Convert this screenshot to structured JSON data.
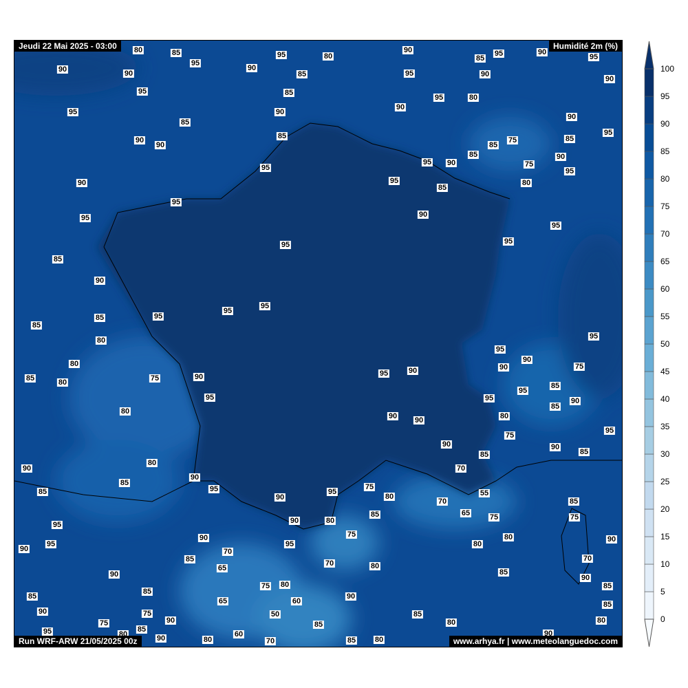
{
  "header": {
    "datetime": "Jeudi 22 Mai 2025 - 03:00",
    "variable": "Humidité 2m (%)"
  },
  "footer": {
    "run": "Run WRF-ARW 21/05/2025 00z",
    "credits": "www.arhya.fr | www.meteolanguedoc.com"
  },
  "colorbar": {
    "ticks": [
      "0",
      "5",
      "10",
      "15",
      "20",
      "25",
      "30",
      "35",
      "40",
      "45",
      "50",
      "55",
      "60",
      "65",
      "70",
      "75",
      "80",
      "85",
      "90",
      "95",
      "100"
    ],
    "colors": [
      "#f7fbff",
      "#eef5fc",
      "#e3eef9",
      "#d9e8f5",
      "#cfe1f2",
      "#c2d9ee",
      "#b5d4e9",
      "#a6cde3",
      "#94c4df",
      "#82bbdb",
      "#6aaed6",
      "#5ba3d0",
      "#4a98c9",
      "#3c8bc3",
      "#2f7ebc",
      "#2271b5",
      "#1865ac",
      "#0f59a3",
      "#084d96",
      "#083e81",
      "#08306b"
    ],
    "extends": "both"
  },
  "contour_labels": [
    80,
    85,
    95,
    95,
    80,
    90,
    85,
    95,
    90,
    95,
    90,
    90,
    90,
    85,
    95,
    90,
    90,
    95,
    85,
    95,
    80,
    95,
    90,
    90,
    90,
    85,
    95,
    90,
    90,
    85,
    75,
    85,
    85,
    85,
    90,
    95,
    90,
    75,
    95,
    95,
    90,
    95,
    85,
    80,
    95,
    95,
    90,
    95,
    95,
    95,
    85,
    90,
    95,
    95,
    95,
    85,
    85,
    80,
    95,
    95,
    80,
    90,
    90,
    75,
    85,
    80,
    75,
    90,
    95,
    90,
    85,
    95,
    95,
    95,
    90,
    85,
    80,
    90,
    90,
    80,
    75,
    95,
    90,
    90,
    85,
    85,
    80,
    70,
    90,
    90,
    85,
    95,
    75,
    95,
    55,
    85,
    90,
    80,
    70,
    85,
    85,
    65,
    75,
    75,
    90,
    80,
    95,
    75,
    80,
    90,
    90,
    95,
    95,
    80,
    90,
    70,
    85,
    70,
    70,
    80,
    65,
    85,
    90,
    90,
    75,
    80,
    85,
    85,
    85,
    90,
    65,
    60,
    85,
    90,
    75,
    50,
    85,
    75,
    90,
    85,
    80,
    80,
    95,
    85,
    80,
    60,
    90,
    90,
    80,
    70,
    85,
    80
  ]
}
